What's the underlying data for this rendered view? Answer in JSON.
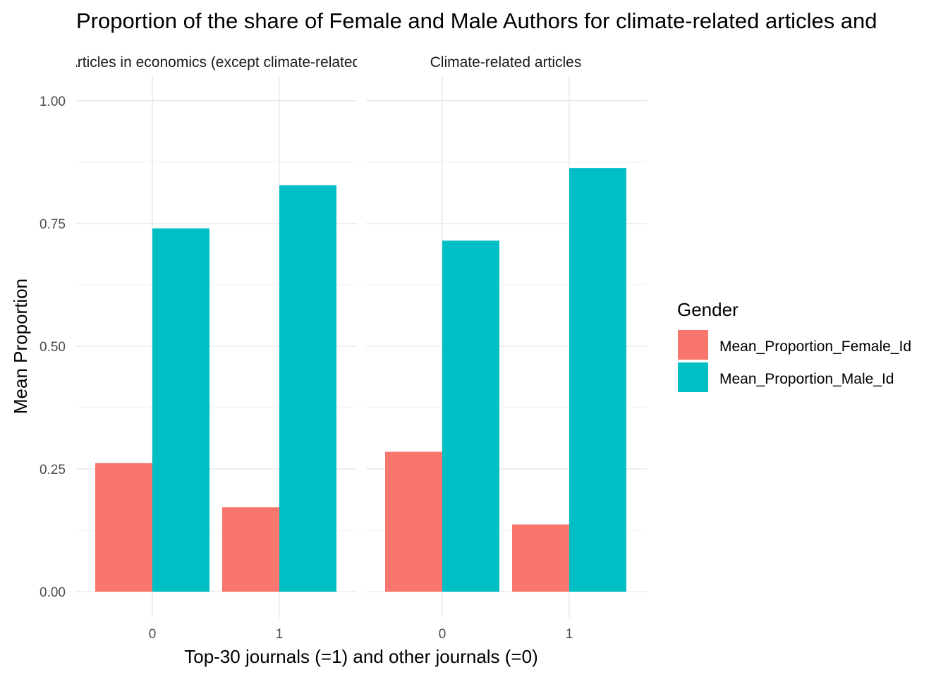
{
  "chart_data": {
    "type": "bar",
    "title": "Proportion of the share of Female and Male Authors for climate-related articles and",
    "xlabel": "Top-30 journals (=1) and other journals (=0)",
    "ylabel": "Mean Proportion",
    "ylim": [
      0,
      1.05
    ],
    "y_ticks": [
      "0.00",
      "0.25",
      "0.50",
      "0.75",
      "1.00"
    ],
    "categories": [
      "0",
      "1"
    ],
    "legend": {
      "title": "Gender",
      "position": "right",
      "entries": [
        {
          "name": "Mean_Proportion_Female_Id",
          "color": "#F8766D"
        },
        {
          "name": "Mean_Proportion_Male_Id",
          "color": "#00BFC4"
        }
      ]
    },
    "grid": true,
    "panels": [
      {
        "strip": "Articles in economics (except climate-related)",
        "series": [
          {
            "name": "Mean_Proportion_Female_Id",
            "values": [
              0.262,
              0.172
            ]
          },
          {
            "name": "Mean_Proportion_Male_Id",
            "values": [
              0.74,
              0.828
            ]
          }
        ]
      },
      {
        "strip": "Climate-related articles",
        "series": [
          {
            "name": "Mean_Proportion_Female_Id",
            "values": [
              0.285,
              0.137
            ]
          },
          {
            "name": "Mean_Proportion_Male_Id",
            "values": [
              0.715,
              0.863
            ]
          }
        ]
      }
    ]
  }
}
